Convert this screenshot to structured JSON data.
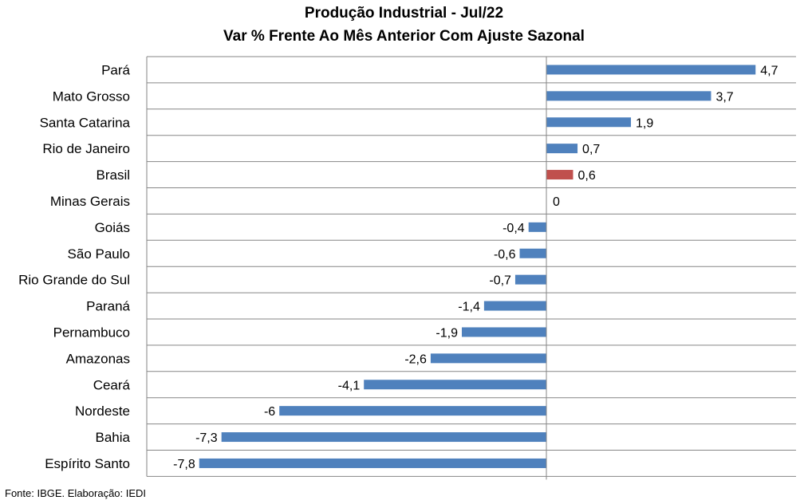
{
  "chart_data": {
    "type": "bar",
    "orientation": "horizontal",
    "title": "Produção Industrial - Jul/22",
    "subtitle": "Var % Frente Ao Mês Anterior Com Ajuste Sazonal",
    "categories": [
      "Pará",
      "Mato Grosso",
      "Santa Catarina",
      "Rio de Janeiro",
      "Brasil",
      "Minas Gerais",
      "Goiás",
      "São Paulo",
      "Rio Grande do Sul",
      "Paraná",
      "Pernambuco",
      "Amazonas",
      "Ceará",
      "Nordeste",
      "Bahia",
      "Espírito Santo"
    ],
    "values": [
      4.7,
      3.7,
      1.9,
      0.7,
      0.6,
      0,
      -0.4,
      -0.6,
      -0.7,
      -1.4,
      -1.9,
      -2.6,
      -4.1,
      -6,
      -7.3,
      -7.8
    ],
    "value_labels": [
      "4,7",
      "3,7",
      "1,9",
      "0,7",
      "0,6",
      "0",
      "-0,4",
      "-0,6",
      "-0,7",
      "-1,4",
      "-1,9",
      "-2,6",
      "-4,1",
      "-6",
      "-7,3",
      "-7,8"
    ],
    "highlight_category": "Brasil",
    "xlim": [
      -8.5,
      5.5
    ],
    "grid": true,
    "colors": {
      "bar": "#4f81bd",
      "highlight": "#c0504d",
      "grid": "#868686"
    }
  },
  "source_note": "Fonte: IBGE. Elaboração: IEDI"
}
